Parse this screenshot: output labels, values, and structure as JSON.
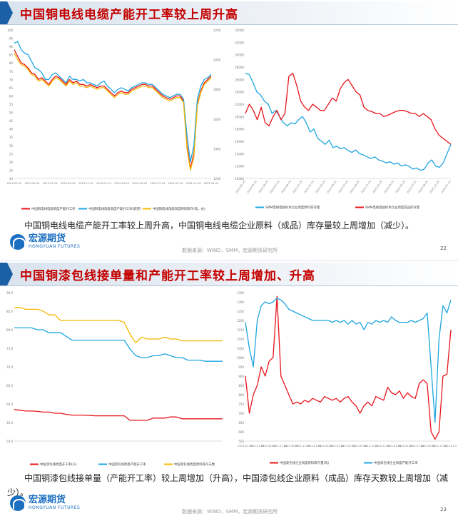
{
  "slides": [
    {
      "title": "中国铜电线电缆产能开工率较上周升高",
      "summary": "中国铜电线电缆产能开工率较上周升高，中国铜电线电缆企业原料（成品）库存量较上周增加（减少）。",
      "logo_cn": "宏源期货",
      "logo_en": "HONGYUAN FUTURES",
      "source": "数据来源：WIND，SMM，宏源期货研究所",
      "page": "22"
    },
    {
      "title": "中国铜漆包线接单量和产能开工率较上周增加、升高",
      "summary": "中国铜漆包线接单量（产能开工率）较上周增加（升高），中国漆包线企业原料（成品）库存天数较上周增加（减少）。",
      "logo_cn": "宏源期货",
      "logo_en": "HONGYUAN FUTURES",
      "source": "数据来源：WIND，SMM，宏源期货研究所",
      "page": "23"
    }
  ],
  "colors": {
    "red": "#e8141b",
    "blue": "#1ea6e0",
    "yellow": "#f5b800",
    "title": "#c40000",
    "brand": "#1b6fc0"
  },
  "chart_data": [
    {
      "id": "c1",
      "type": "line",
      "y_left_ticks": [
        "100",
        "95",
        "90",
        "85",
        "80",
        "75",
        "70",
        "65",
        "60",
        "55",
        "50",
        "45",
        "40",
        "35",
        "30",
        "25",
        "20",
        "15",
        "10"
      ],
      "y_right_ticks": [
        "2200",
        "2000",
        "1800",
        "1600",
        "1400",
        "1200"
      ],
      "x_ticks": [
        "2023-03-24",
        "2023-05-24",
        "2023-07-24",
        "2023-09-24",
        "2023-11-24",
        "2024-01-24",
        "2024-03-24",
        "2024-05-24",
        "2024-07-24",
        "2024-09-24",
        "2024-11-24",
        "2025-01-24"
      ],
      "ylim": [
        10,
        100
      ],
      "series": [
        {
          "name": "中国铜电线电缆周度产能开工率",
          "color": "red",
          "values": [
            88,
            84,
            80,
            79,
            77,
            74,
            73,
            70,
            71,
            69,
            67,
            70,
            72,
            71,
            69,
            67,
            70,
            68,
            69,
            67,
            67,
            66,
            67,
            66,
            65,
            66,
            66,
            64,
            62,
            60,
            62,
            63,
            62,
            62,
            64,
            65,
            66,
            67,
            67,
            66,
            66,
            64,
            62,
            60,
            59,
            58,
            59,
            60,
            60,
            57,
            30,
            16,
            25,
            55,
            63,
            68,
            70,
            72
          ]
        },
        {
          "name": "中国铜电线电缆周度产能开工率(期望)",
          "color": "blue",
          "values": [
            92,
            93,
            88,
            86,
            85,
            81,
            77,
            76,
            74,
            70,
            70,
            73,
            74,
            72,
            70,
            68,
            72,
            70,
            70,
            69,
            70,
            68,
            68,
            67,
            66,
            68,
            69,
            66,
            64,
            62,
            64,
            65,
            64,
            63,
            65,
            66,
            67,
            68,
            68,
            67,
            67,
            65,
            63,
            61,
            60,
            59,
            60,
            61,
            61,
            58,
            36,
            20,
            30,
            58,
            66,
            70,
            71,
            73
          ]
        },
        {
          "name": "中国铜电线电缆周度原料库存(吨，右)",
          "color": "yellow",
          "values": [
            86,
            82,
            79,
            78,
            76,
            73,
            72,
            69,
            70,
            68,
            66,
            69,
            71,
            70,
            68,
            66,
            69,
            67,
            68,
            66,
            66,
            65,
            66,
            65,
            64,
            65,
            65,
            63,
            61,
            59,
            61,
            62,
            61,
            61,
            63,
            64,
            65,
            66,
            66,
            65,
            65,
            63,
            61,
            59,
            58,
            57,
            58,
            59,
            59,
            56,
            28,
            15,
            23,
            54,
            62,
            67,
            69,
            71
          ]
        }
      ]
    },
    {
      "id": "c2",
      "type": "line",
      "y_ticks": [
        "34000",
        "32000",
        "30000",
        "28000",
        "26000",
        "24000",
        "22000",
        "20000",
        "18000",
        "16000",
        "14000",
        "12000",
        "10000"
      ],
      "ylim": [
        10000,
        34000
      ],
      "x_ticks": [
        "2023-01-16",
        "2023-03-16",
        "2023-05-16",
        "2023-07-16",
        "2023-09-16",
        "2023-11-16",
        "2024-01-16",
        "2024-03-16",
        "2024-05-16",
        "2024-07-16",
        "2024-09-16",
        "2024-11-16",
        "2025-01-16",
        "2025-03-16",
        "2025-05-16",
        "2025-07-16",
        "2025-09-16",
        "2025-11-16",
        "2026-01-16"
      ],
      "series": [
        {
          "name": "SMM电线电缆样本企业周度原料库存量",
          "color": "blue",
          "values": [
            27000,
            26800,
            25500,
            24000,
            23500,
            22500,
            22000,
            20500,
            21000,
            20000,
            19000,
            18500,
            19000,
            18800,
            19500,
            20000,
            19000,
            17500,
            18000,
            16500,
            16000,
            15500,
            16200,
            15000,
            15200,
            14800,
            15000,
            14500,
            14200,
            14600,
            14000,
            13800,
            13500,
            13200,
            13500,
            13000,
            12800,
            12500,
            12700,
            12300,
            12500,
            12000,
            12200,
            12000,
            11500,
            11700,
            11300,
            11500,
            12500,
            13000,
            12000,
            11800,
            12500,
            14000,
            15500
          ]
        },
        {
          "name": "SMM电线电缆样本企业周度成品库存量",
          "color": "red",
          "values": [
            20500,
            22000,
            21000,
            19500,
            21500,
            19000,
            18500,
            20000,
            21000,
            19500,
            20500,
            26500,
            27000,
            25000,
            22500,
            21500,
            21000,
            22000,
            21500,
            21000,
            21000,
            22000,
            23000,
            22500,
            24500,
            25500,
            26000,
            25000,
            24000,
            23500,
            21500,
            21000,
            20800,
            20500,
            20500,
            20000,
            20200,
            20500,
            20800,
            21000,
            21000,
            20800,
            20500,
            20500,
            20000,
            20500,
            20000,
            19500,
            18000,
            17000,
            16500,
            16000,
            15500
          ]
        }
      ]
    },
    {
      "id": "c3",
      "type": "line",
      "y_ticks": [
        "90.0",
        "85.0",
        "80.0",
        "75.0",
        "70.0",
        "65.0",
        "60.0",
        "55.0",
        "50.0"
      ],
      "ylim": [
        50,
        90
      ],
      "series": [
        {
          "name": "中国漆包线周度开工率(头)",
          "color": "red",
          "values": [
            58.5,
            58.3,
            58.1,
            58.1,
            58.0,
            57.8,
            57.8,
            57.5,
            57.5,
            57.2,
            57.0,
            57.0,
            57.0,
            56.9,
            56.8,
            56.8,
            56.8,
            56.8,
            56.8,
            56.8,
            55.6,
            55.6,
            55.6,
            55.6,
            56.2,
            56.2,
            56.2,
            56.5,
            56.5,
            56.0,
            56.0,
            56.0,
            56.0,
            56.0,
            56.0,
            56.0,
            56.0
          ]
        },
        {
          "name": "中国漆包线周度产能开工率",
          "color": "blue",
          "values": [
            80.5,
            80.5,
            80.5,
            80.5,
            80.0,
            80.0,
            79.2,
            79.2,
            79.2,
            78.2,
            77.2,
            77.2,
            77.2,
            77.2,
            77.2,
            77.2,
            77.2,
            77.2,
            77.2,
            77.2,
            74.8,
            73.0,
            72.5,
            72.5,
            73.0,
            73.0,
            73.5,
            73.0,
            72.5,
            72.5,
            71.8,
            71.8,
            71.8,
            71.5,
            71.5,
            71.5,
            71.5
          ]
        },
        {
          "name": "中国漆包线周度原料库存天数",
          "color": "yellow",
          "values": [
            86.0,
            86.0,
            85.5,
            85.5,
            85.5,
            85.0,
            84.0,
            84.0,
            82.5,
            82.5,
            82.5,
            82.5,
            82.5,
            82.5,
            82.5,
            82.5,
            82.5,
            82.5,
            82.5,
            82.0,
            78.8,
            76.5,
            78.0,
            77.5,
            77.5,
            77.5,
            78.0,
            77.5,
            77.5,
            77.0,
            77.0,
            77.0,
            77.0,
            77.0,
            77.0,
            77.0,
            77.0
          ]
        }
      ]
    },
    {
      "id": "c4",
      "type": "line",
      "y_ticks": [
        "1350",
        "1300",
        "1250",
        "1200",
        "1150",
        "1100",
        "1050",
        "1000",
        "950",
        "900",
        "850",
        "800",
        "750",
        "700",
        "650",
        "600",
        "550"
      ],
      "ylim": [
        550,
        1350
      ],
      "x_ticks": [
        "2022-01-04",
        "2022-03-04",
        "2022-05-04",
        "2022-07-04",
        "2022-09-04",
        "2022-11-04",
        "2023-01-04",
        "2023-03-04",
        "2023-05-04",
        "2023-07-04",
        "2023-09-04",
        "2023-11-04",
        "2024-01-04",
        "2024-03-04",
        "2024-05-04",
        "2024-07-04",
        "2024-09-04",
        "2024-11-04",
        "2025-01-04"
      ],
      "series": [
        {
          "name": "中国漆包线企业周度原料库存量(吨)",
          "color": "red",
          "values": [
            900,
            700,
            800,
            850,
            950,
            900,
            980,
            1000,
            1330,
            900,
            850,
            800,
            750,
            760,
            750,
            770,
            760,
            780,
            770,
            760,
            790,
            780,
            770,
            780,
            760,
            780,
            790,
            760,
            740,
            700,
            740,
            760,
            740,
            790,
            780,
            770,
            840,
            810,
            800,
            820,
            780,
            810,
            790,
            780,
            860,
            880,
            860,
            600,
            560,
            600,
            900,
            910,
            1150
          ]
        },
        {
          "name": "中国漆包线企业周度产能开工率",
          "color": "blue",
          "values": [
            1190,
            1050,
            950,
            1200,
            1280,
            1300,
            1290,
            1300,
            1320,
            1310,
            1290,
            1260,
            1250,
            1240,
            1230,
            1220,
            1210,
            1200,
            1200,
            1200,
            1200,
            1200,
            1190,
            1200,
            1190,
            1200,
            1180,
            1200,
            1180,
            1190,
            1150,
            1190,
            1180,
            1200,
            1190,
            1200,
            1190,
            1220,
            1200,
            1190,
            1190,
            1190,
            1200,
            1190,
            1200,
            1210,
            1240,
            950,
            650,
            1100,
            1280,
            1240,
            1310
          ]
        }
      ]
    }
  ]
}
